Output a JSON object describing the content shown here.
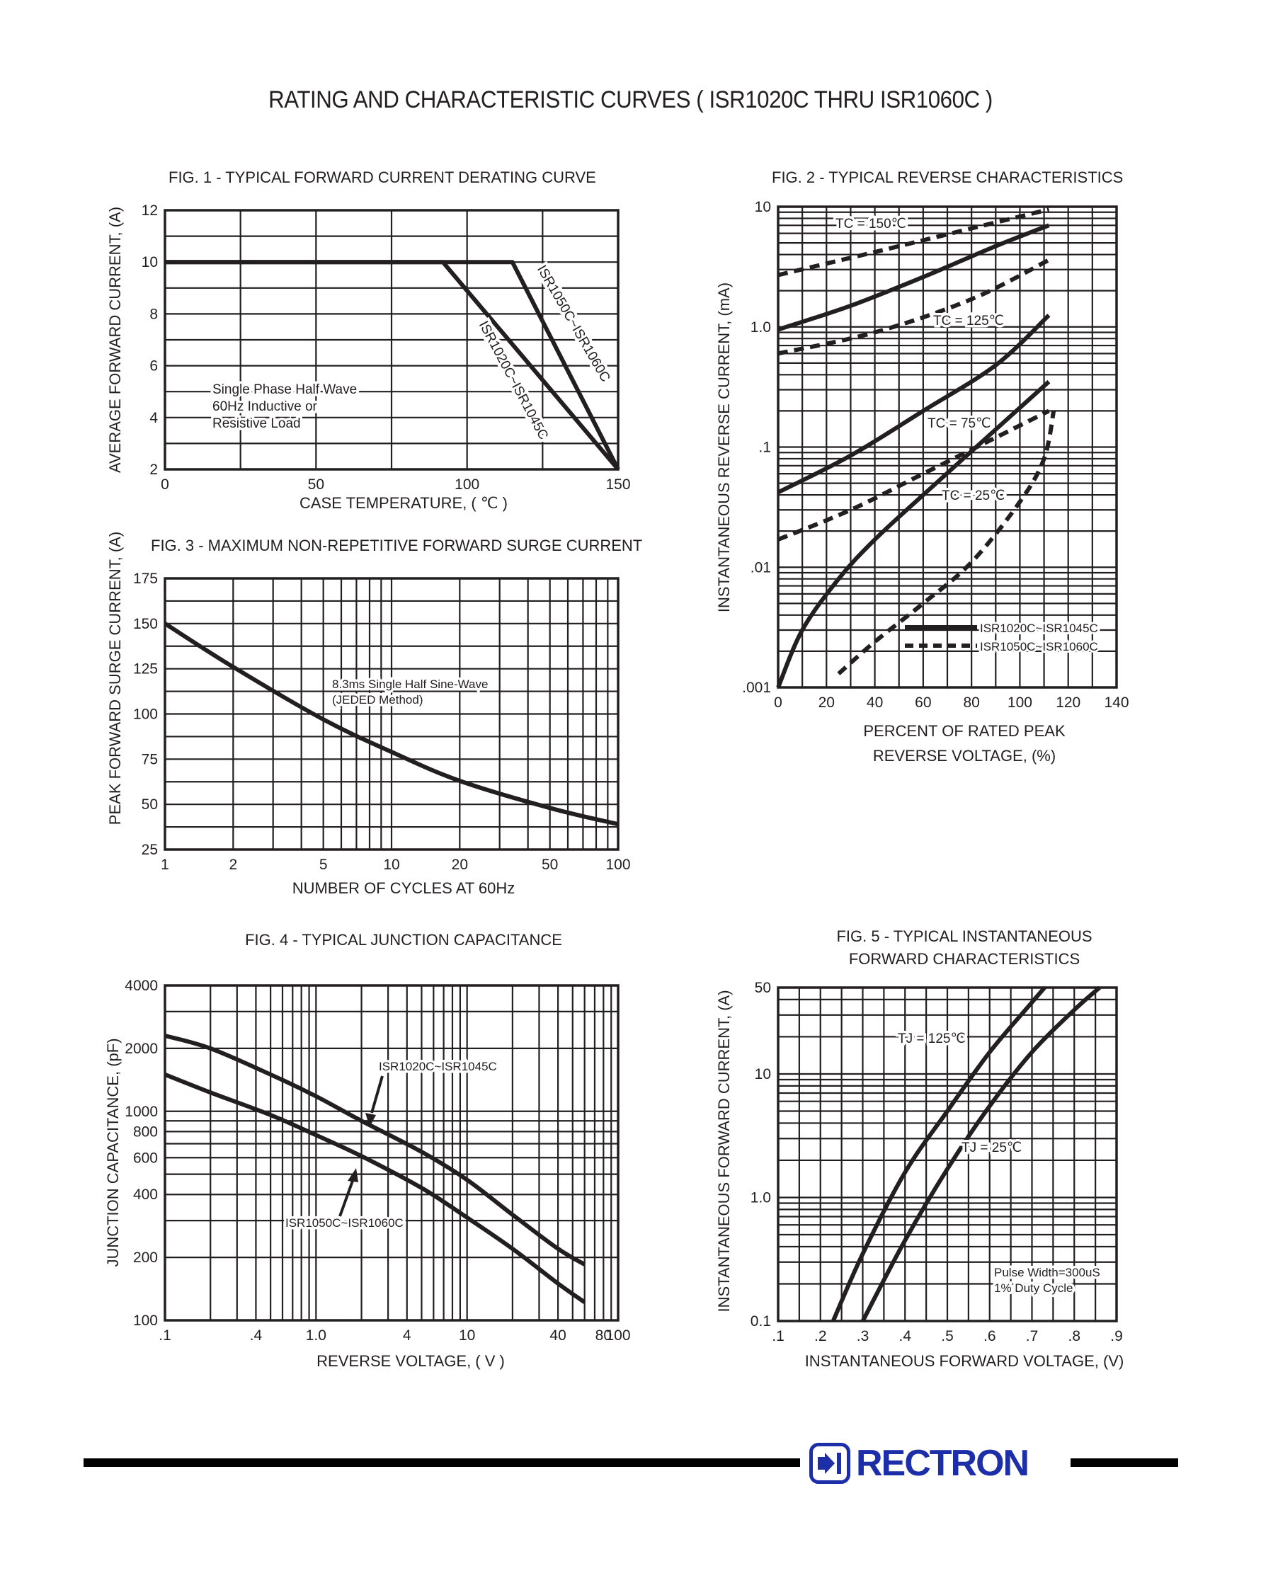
{
  "page": {
    "title": "RATING AND CHARACTERISTIC CURVES ( ISR1020C THRU ISR1060C )",
    "brand": "RECTRON",
    "brand_color": "#1d2fa8",
    "ink_color": "#231f20"
  },
  "chart_data": [
    {
      "id": "fig1",
      "type": "line",
      "title": "FIG. 1 - TYPICAL FORWARD CURRENT DERATING CURVE",
      "xlabel": "CASE TEMPERATURE, ( ℃ )",
      "ylabel": "AVERAGE FORWARD CURRENT, (A)",
      "xlim": [
        0,
        150
      ],
      "ylim": [
        2,
        12
      ],
      "xscale": "linear",
      "yscale": "linear",
      "xticks": [
        0,
        50,
        100,
        150
      ],
      "xtick_labels": [
        "0",
        "50",
        "100",
        "150"
      ],
      "yticks": [
        2,
        4,
        6,
        8,
        10,
        12
      ],
      "ytick_labels": [
        "2",
        "4",
        "6",
        "8",
        "10",
        "12"
      ],
      "grid": true,
      "series": [
        {
          "name": "ISR1020C~ISR1045C",
          "style": "solid",
          "points": [
            [
              0,
              10
            ],
            [
              92,
              10
            ],
            [
              150,
              2
            ]
          ]
        },
        {
          "name": "ISR1050C~ISR1060C",
          "style": "solid",
          "points": [
            [
              0,
              10
            ],
            [
              115,
              10
            ],
            [
              150,
              2
            ]
          ]
        }
      ],
      "annotations": [
        {
          "lines": [
            "Single Phase Half Wave",
            "60Hz Inductive or",
            "Resistive Load"
          ]
        }
      ]
    },
    {
      "id": "fig2",
      "type": "line",
      "title": "FIG. 2 - TYPICAL REVERSE CHARACTERISTICS",
      "xlabel": "PERCENT OF RATED PEAK",
      "xlabel2": "REVERSE VOLTAGE, (%)",
      "ylabel": "INSTANTANEOUS REVERSE CURRENT, (mA)",
      "xlim": [
        0,
        140
      ],
      "ylim": [
        0.001,
        10
      ],
      "xscale": "linear",
      "yscale": "log",
      "xticks": [
        0,
        20,
        40,
        60,
        80,
        100,
        120,
        140
      ],
      "xtick_labels": [
        "0",
        "20",
        "40",
        "60",
        "80",
        "100",
        "120",
        "140"
      ],
      "yticks": [
        0.001,
        0.01,
        0.1,
        1,
        10
      ],
      "ytick_labels": [
        ".001",
        ".01",
        ".1",
        "1.0",
        "10"
      ],
      "grid": true,
      "legend": {
        "position": "bottom-right",
        "entries": [
          {
            "label": "ISR1020C~ISR1045C",
            "style": "solid"
          },
          {
            "label": "ISR1050C~ISR1060C",
            "style": "dashed"
          }
        ]
      },
      "series": [
        {
          "name": "TC = 150℃",
          "style": "solid",
          "points": [
            [
              0,
              0.95
            ],
            [
              30,
              1.5
            ],
            [
              60,
              2.6
            ],
            [
              90,
              4.7
            ],
            [
              112,
              7
            ]
          ]
        },
        {
          "name": "TC = 150℃",
          "style": "dashed",
          "points": [
            [
              0,
              2.7
            ],
            [
              40,
              4.2
            ],
            [
              80,
              6.6
            ],
            [
              112,
              9.5
            ]
          ]
        },
        {
          "name": "TC = 150℃ ",
          "style": "dashed",
          "points": [
            [
              0,
              0.6
            ],
            [
              40,
              0.9
            ],
            [
              80,
              1.7
            ],
            [
              112,
              3.6
            ]
          ]
        },
        {
          "name": "TC = 125℃",
          "style": "solid",
          "points": [
            [
              0,
              0.042
            ],
            [
              30,
              0.085
            ],
            [
              60,
              0.2
            ],
            [
              90,
              0.48
            ],
            [
              112,
              1.25
            ]
          ]
        },
        {
          "name": "TC = 75℃",
          "style": "dashed",
          "points": [
            [
              0,
              0.017
            ],
            [
              30,
              0.03
            ],
            [
              60,
              0.06
            ],
            [
              90,
              0.12
            ],
            [
              112,
              0.2
            ]
          ]
        },
        {
          "name": "TC = 75℃",
          "style": "solid",
          "points": [
            [
              0,
              0.001
            ],
            [
              10,
              0.003
            ],
            [
              25,
              0.008
            ],
            [
              40,
              0.017
            ],
            [
              60,
              0.04
            ],
            [
              90,
              0.14
            ],
            [
              112,
              0.35
            ]
          ]
        },
        {
          "name": "TC = 25℃",
          "style": "dashed",
          "points": [
            [
              25,
              0.0013
            ],
            [
              40,
              0.0024
            ],
            [
              60,
              0.005
            ],
            [
              80,
              0.011
            ],
            [
              100,
              0.035
            ],
            [
              110,
              0.08
            ],
            [
              114,
              0.2
            ]
          ]
        }
      ],
      "curve_labels": [
        "TC = 150℃",
        "TC = 125℃",
        "TC = 75℃",
        "TC = 25℃"
      ]
    },
    {
      "id": "fig3",
      "type": "line",
      "title": "FIG. 3 - MAXIMUM NON-REPETITIVE FORWARD SURGE CURRENT",
      "xlabel": "NUMBER OF CYCLES AT 60Hz",
      "ylabel": "PEAK FORWARD SURGE CURRENT, (A)",
      "xlim": [
        1,
        100
      ],
      "ylim": [
        25,
        175
      ],
      "xscale": "log",
      "yscale": "linear",
      "xticks": [
        1,
        2,
        5,
        10,
        20,
        50,
        100
      ],
      "xtick_labels": [
        "1",
        "2",
        "5",
        "10",
        "20",
        "50",
        "100"
      ],
      "yticks": [
        25,
        50,
        75,
        100,
        125,
        150,
        175
      ],
      "ytick_labels": [
        "25",
        "50",
        "75",
        "100",
        "125",
        "150",
        "175"
      ],
      "grid": true,
      "series": [
        {
          "name": "",
          "style": "solid",
          "points": [
            [
              1,
              150
            ],
            [
              2,
              126
            ],
            [
              5,
              97
            ],
            [
              10,
              79
            ],
            [
              20,
              63
            ],
            [
              50,
              48
            ],
            [
              100,
              39
            ]
          ]
        }
      ],
      "annotations": [
        {
          "lines": [
            "8.3ms Single Half Sine-Wave",
            "(JEDED Method)"
          ]
        }
      ]
    },
    {
      "id": "fig4",
      "type": "line",
      "title": "FIG. 4 - TYPICAL JUNCTION CAPACITANCE",
      "xlabel": "REVERSE VOLTAGE, ( V )",
      "ylabel": "JUNCTION CAPACITANCE, (pF)",
      "xlim": [
        0.1,
        100
      ],
      "ylim": [
        100,
        4000
      ],
      "xscale": "log",
      "yscale": "log",
      "xticks": [
        0.1,
        0.4,
        1,
        4,
        10,
        40,
        80,
        100
      ],
      "xtick_labels": [
        ".1",
        ".4",
        "1.0",
        "4",
        "10",
        "40",
        "80",
        "100"
      ],
      "yticks": [
        100,
        200,
        400,
        600,
        800,
        1000,
        2000,
        4000
      ],
      "ytick_labels": [
        "100",
        "200",
        "400",
        "600",
        "800",
        "1000",
        "2000",
        "4000"
      ],
      "grid": true,
      "series": [
        {
          "name": "ISR1020C~ISR1045C",
          "style": "solid",
          "points": [
            [
              0.1,
              2300
            ],
            [
              0.2,
              2000
            ],
            [
              0.5,
              1500
            ],
            [
              1,
              1180
            ],
            [
              2,
              900
            ],
            [
              5,
              640
            ],
            [
              10,
              470
            ],
            [
              20,
              320
            ],
            [
              40,
              220
            ],
            [
              60,
              185
            ]
          ]
        },
        {
          "name": "ISR1050C~ISR1060C",
          "style": "solid",
          "points": [
            [
              0.1,
              1500
            ],
            [
              0.2,
              1230
            ],
            [
              0.5,
              960
            ],
            [
              1,
              770
            ],
            [
              2,
              610
            ],
            [
              5,
              430
            ],
            [
              10,
              310
            ],
            [
              20,
              220
            ],
            [
              40,
              150
            ],
            [
              60,
              122
            ]
          ]
        }
      ]
    },
    {
      "id": "fig5",
      "type": "line",
      "title": "FIG. 5 - TYPICAL INSTANTANEOUS",
      "title2": "FORWARD CHARACTERISTICS",
      "xlabel": "INSTANTANEOUS FORWARD VOLTAGE, (V)",
      "ylabel": "INSTANTANEOUS FORWARD CURRENT, (A)",
      "xlim": [
        0.1,
        0.9
      ],
      "ylim": [
        0.1,
        50
      ],
      "xscale": "linear",
      "yscale": "log",
      "xticks": [
        0.1,
        0.2,
        0.3,
        0.4,
        0.5,
        0.6,
        0.7,
        0.8,
        0.9
      ],
      "xtick_labels": [
        ".1",
        ".2",
        ".3",
        ".4",
        ".5",
        ".6",
        ".7",
        ".8",
        ".9"
      ],
      "yticks": [
        0.1,
        1,
        10,
        50
      ],
      "ytick_labels": [
        "0.1",
        "1.0",
        "10",
        "50"
      ],
      "grid": true,
      "series": [
        {
          "name": "TJ = 125℃",
          "style": "solid",
          "points": [
            [
              0.23,
              0.1
            ],
            [
              0.3,
              0.35
            ],
            [
              0.4,
              1.6
            ],
            [
              0.5,
              5
            ],
            [
              0.6,
              15
            ],
            [
              0.7,
              38
            ],
            [
              0.73,
              50
            ]
          ]
        },
        {
          "name": "TJ = 25℃",
          "style": "solid",
          "points": [
            [
              0.3,
              0.1
            ],
            [
              0.4,
              0.45
            ],
            [
              0.5,
              1.7
            ],
            [
              0.6,
              5.5
            ],
            [
              0.7,
              15
            ],
            [
              0.8,
              33
            ],
            [
              0.86,
              50
            ]
          ]
        }
      ],
      "annotations": [
        {
          "lines": [
            "Pulse Width=300uS",
            "1% Duty Cycle"
          ]
        }
      ]
    }
  ]
}
